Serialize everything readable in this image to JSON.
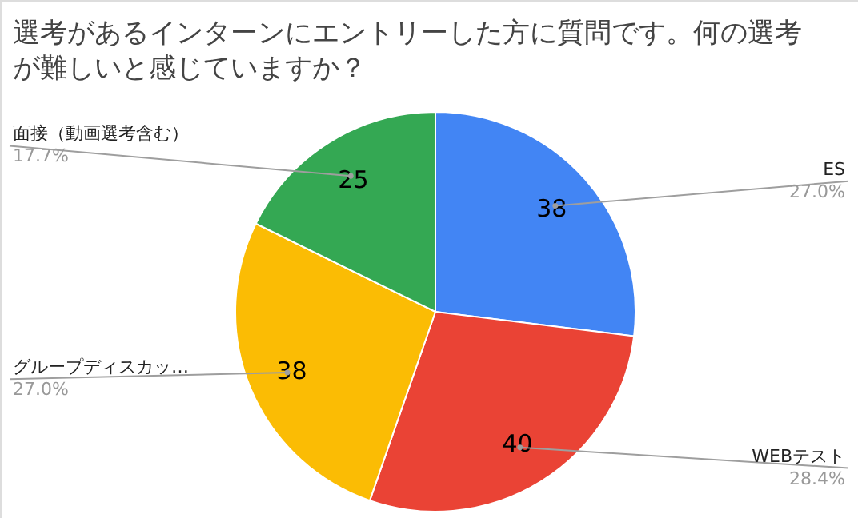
{
  "chart_data": {
    "type": "pie",
    "title": "選考があるインターンにエントリーした方に質問です。何の選考が難しいと感じていますか？",
    "categories": [
      "ES",
      "WEBテスト",
      "グループディスカッ…",
      "面接（動画選考含む）"
    ],
    "values": [
      38,
      40,
      38,
      25
    ],
    "colors": [
      "#4285f4",
      "#ea4335",
      "#fbbc04",
      "#34a853"
    ],
    "value_labels": [
      "38",
      "40",
      "38",
      "25"
    ],
    "annotations": [
      "27.0%",
      "28.4%",
      "27.0%",
      "17.7%"
    ],
    "legend": false
  }
}
